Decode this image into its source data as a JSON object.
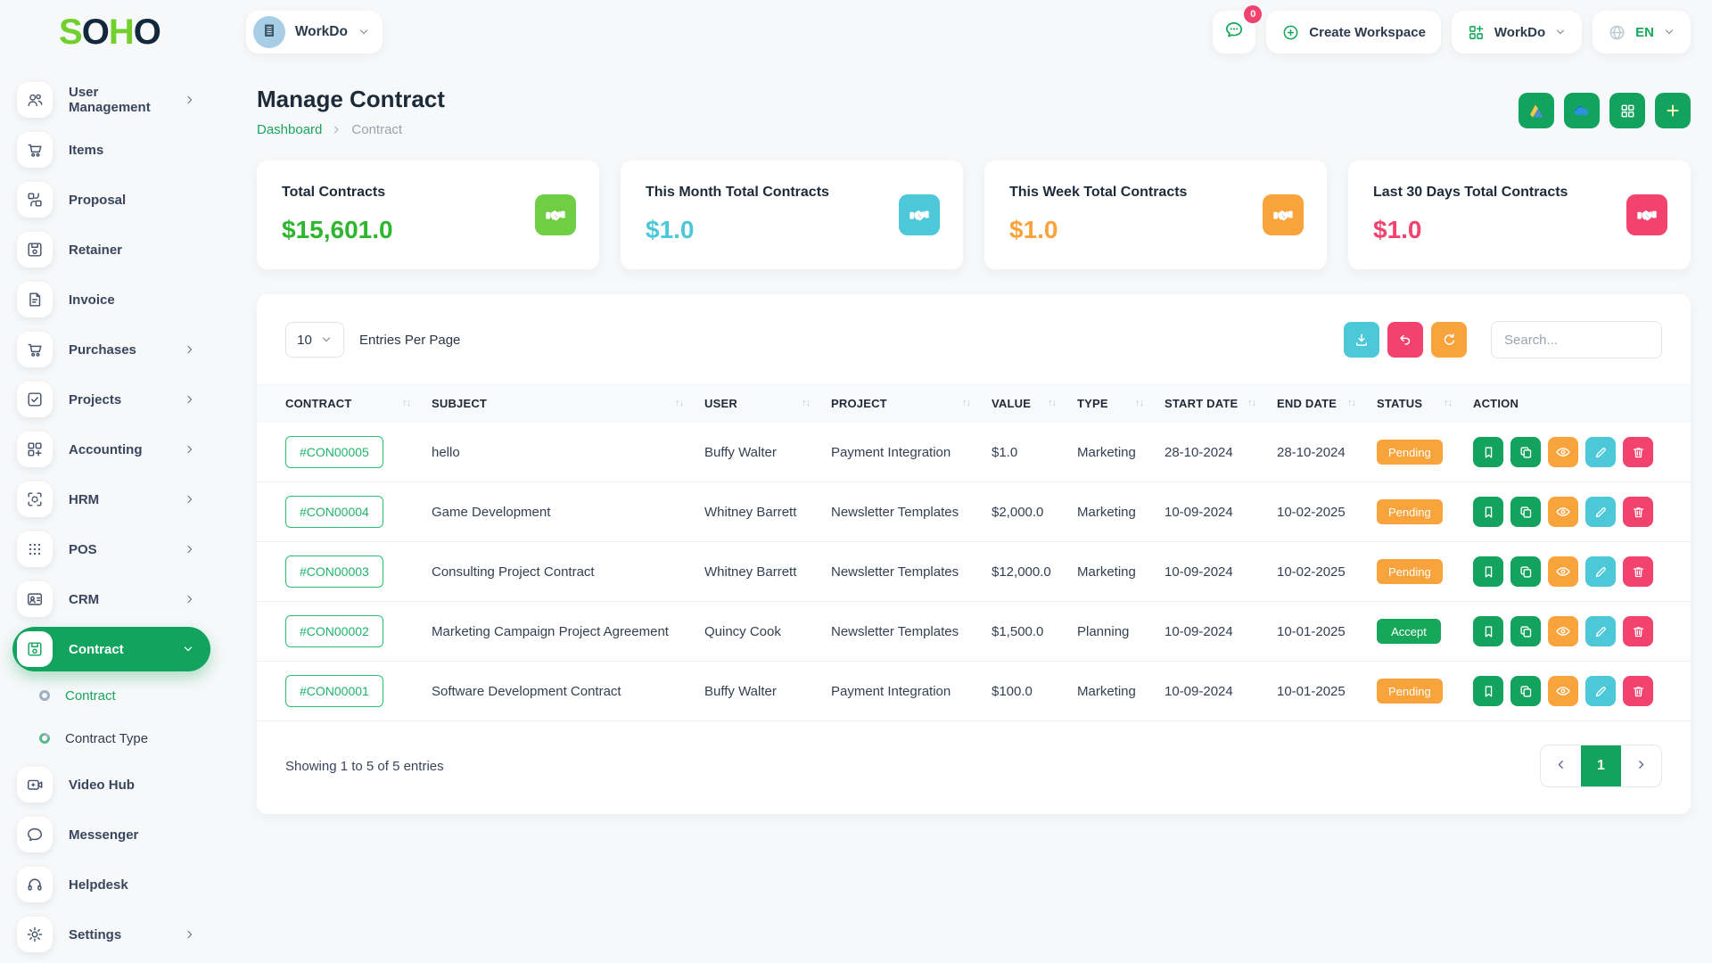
{
  "brand": {
    "logo": [
      {
        "ch": "S",
        "color": "#72d02e"
      },
      {
        "ch": "O",
        "color": "#13293b"
      },
      {
        "ch": "H",
        "color": "#72d02e"
      },
      {
        "ch": "O",
        "color": "#13293b"
      }
    ]
  },
  "topbar": {
    "workspace": {
      "label": "WorkDo"
    },
    "chat": {
      "badge": "0"
    },
    "create_workspace": {
      "label": "Create Workspace"
    },
    "app_menu": {
      "label": "WorkDo"
    },
    "language": {
      "label": "EN"
    }
  },
  "page": {
    "title": "Manage Contract",
    "breadcrumb": [
      {
        "label": "Dashboard"
      },
      {
        "label": "Contract"
      }
    ]
  },
  "header_actions": [
    {
      "name": "google-drive-button",
      "icon": "gdrive"
    },
    {
      "name": "onedrive-button",
      "icon": "onedrive"
    },
    {
      "name": "grid-view-button",
      "icon": "grid"
    },
    {
      "name": "add-contract-button",
      "icon": "plus"
    }
  ],
  "stats": [
    {
      "label": "Total Contracts",
      "value": "$15,601.0",
      "value_color": "#2eb62e",
      "chip_color": "#6fce44"
    },
    {
      "label": "This Month Total Contracts",
      "value": "$1.0",
      "value_color": "#4cc8d9",
      "chip_color": "#4cc8d9"
    },
    {
      "label": "This Week Total Contracts",
      "value": "$1.0",
      "value_color": "#f9a33c",
      "chip_color": "#f9a33c"
    },
    {
      "label": "Last 30 Days Total Contracts",
      "value": "$1.0",
      "value_color": "#f2426e",
      "chip_color": "#f2426e"
    }
  ],
  "sidebar": {
    "items": [
      {
        "label": "User Management",
        "icon": "users",
        "chevron": true
      },
      {
        "label": "Items",
        "icon": "cart"
      },
      {
        "label": "Proposal",
        "icon": "proposal"
      },
      {
        "label": "Retainer",
        "icon": "retainer"
      },
      {
        "label": "Invoice",
        "icon": "invoice"
      },
      {
        "label": "Purchases",
        "icon": "cart",
        "chevron": true
      },
      {
        "label": "Projects",
        "icon": "projects",
        "chevron": true
      },
      {
        "label": "Accounting",
        "icon": "accounting",
        "chevron": true
      },
      {
        "label": "HRM",
        "icon": "hrm",
        "chevron": true
      },
      {
        "label": "POS",
        "icon": "pos",
        "chevron": true
      },
      {
        "label": "CRM",
        "icon": "crm",
        "chevron": true
      },
      {
        "label": "Contract",
        "icon": "contract",
        "active": true,
        "chevron": true
      },
      {
        "label": "Contract",
        "sub": true,
        "active": true
      },
      {
        "label": "Contract Type",
        "sub": true
      },
      {
        "label": "Video Hub",
        "icon": "video"
      },
      {
        "label": "Messenger",
        "icon": "messenger"
      },
      {
        "label": "Helpdesk",
        "icon": "helpdesk"
      },
      {
        "label": "Settings",
        "icon": "settings",
        "chevron": true
      }
    ]
  },
  "controls": {
    "entries_value": "10",
    "entries_label": "Entries Per Page",
    "search_placeholder": "Search...",
    "buttons": [
      {
        "name": "export-button",
        "icon": "download",
        "color": "#4cc8d9"
      },
      {
        "name": "undo-button",
        "icon": "undo",
        "color": "#f2426e"
      },
      {
        "name": "refresh-button",
        "icon": "refresh",
        "color": "#f9a33c"
      }
    ]
  },
  "table": {
    "columns": [
      {
        "label": "CONTRACT",
        "sortable": true
      },
      {
        "label": "SUBJECT",
        "sortable": true
      },
      {
        "label": "USER",
        "sortable": true
      },
      {
        "label": "PROJECT",
        "sortable": true
      },
      {
        "label": "VALUE",
        "sortable": true
      },
      {
        "label": "TYPE",
        "sortable": true
      },
      {
        "label": "START DATE",
        "sortable": true
      },
      {
        "label": "END DATE",
        "sortable": true
      },
      {
        "label": "STATUS",
        "sortable": true
      },
      {
        "label": "ACTION",
        "sortable": false
      }
    ],
    "rows": [
      {
        "contract": "#CON00005",
        "subject": "hello",
        "user": "Buffy Walter",
        "project": "Payment Integration",
        "value": "$1.0",
        "type": "Marketing",
        "start_date": "28-10-2024",
        "end_date": "28-10-2024",
        "status": "Pending"
      },
      {
        "contract": "#CON00004",
        "subject": "Game Development",
        "user": "Whitney Barrett",
        "project": "Newsletter Templates",
        "value": "$2,000.0",
        "type": "Marketing",
        "start_date": "10-09-2024",
        "end_date": "10-02-2025",
        "status": "Pending"
      },
      {
        "contract": "#CON00003",
        "subject": "Consulting Project Contract",
        "user": "Whitney Barrett",
        "project": "Newsletter Templates",
        "value": "$12,000.0",
        "type": "Marketing",
        "start_date": "10-09-2024",
        "end_date": "10-02-2025",
        "status": "Pending"
      },
      {
        "contract": "#CON00002",
        "subject": "Marketing Campaign Project Agreement",
        "user": "Quincy Cook",
        "project": "Newsletter Templates",
        "value": "$1,500.0",
        "type": "Planning",
        "start_date": "10-09-2024",
        "end_date": "10-01-2025",
        "status": "Accept"
      },
      {
        "contract": "#CON00001",
        "subject": "Software Development Contract",
        "user": "Buffy Walter",
        "project": "Payment Integration",
        "value": "$100.0",
        "type": "Marketing",
        "start_date": "10-09-2024",
        "end_date": "10-01-2025",
        "status": "Pending"
      }
    ],
    "status_colors": {
      "Pending": "#f9a33c",
      "Accept": "#17a75b"
    },
    "row_actions": [
      {
        "name": "bookmark-button",
        "icon": "bookmark",
        "color": "#14a35f"
      },
      {
        "name": "duplicate-button",
        "icon": "copy",
        "color": "#14a35f"
      },
      {
        "name": "view-button",
        "icon": "eye",
        "color": "#f9a33c"
      },
      {
        "name": "edit-button",
        "icon": "pencil",
        "color": "#4cc8d9"
      },
      {
        "name": "delete-button",
        "icon": "trash",
        "color": "#f2426e"
      }
    ]
  },
  "footer": {
    "showing": "Showing 1 to 5 of 5 entries",
    "active_page": "1"
  }
}
